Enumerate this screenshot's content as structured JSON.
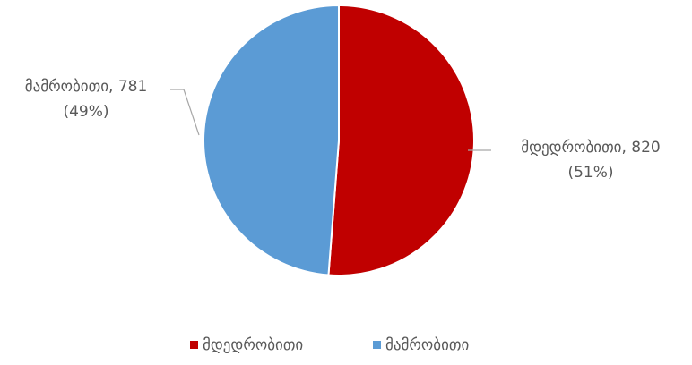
{
  "chart_data": {
    "type": "pie",
    "slices": [
      {
        "label": "მდედრობითი",
        "value": 820,
        "percent": "51%",
        "color": "#C00000"
      },
      {
        "label": "მამრობითი",
        "value": 781,
        "percent": "49%",
        "color": "#5B9BD5"
      }
    ],
    "data_labels": [
      {
        "line1": "მდედრობითი, 820",
        "line2": "(51%)"
      },
      {
        "line1": "მამრობითი, 781",
        "line2": "(49%)"
      }
    ],
    "legend": {
      "placement": "bottom",
      "items": [
        {
          "label": "მდედრობითი",
          "color": "#C00000"
        },
        {
          "label": "მამრობითი",
          "color": "#5B9BD5"
        }
      ]
    },
    "start_angle_deg": 0,
    "direction": "clockwise"
  }
}
